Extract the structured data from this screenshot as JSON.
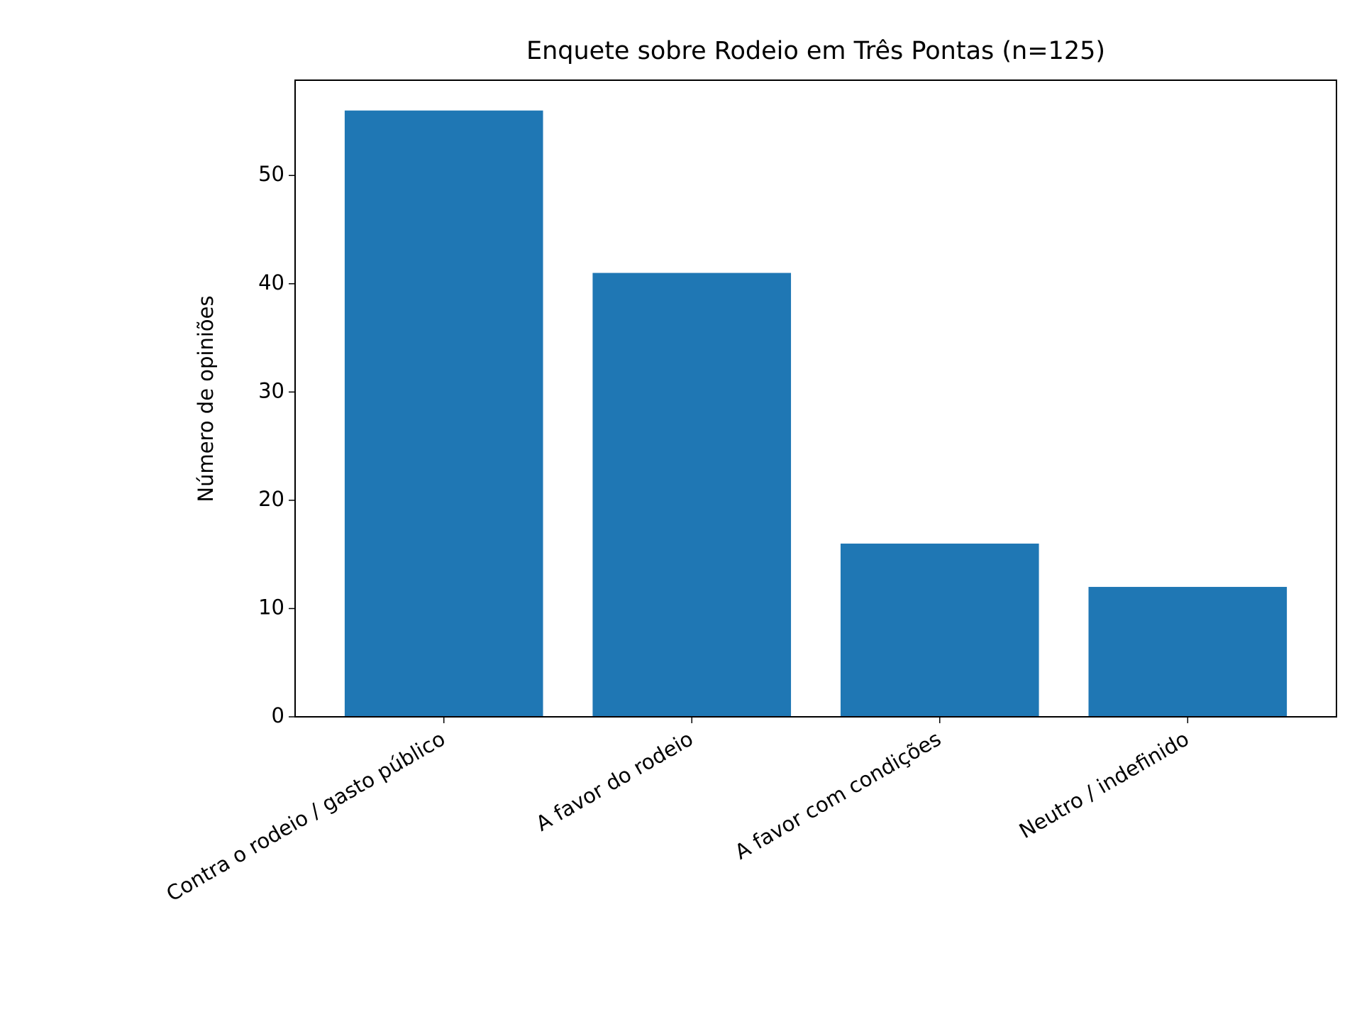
{
  "chart_data": {
    "type": "bar",
    "title": "Enquete sobre Rodeio em Três Pontas (n=125)",
    "y_label": "Número de opiniões",
    "categories": [
      "Contra o rodeio / gasto público",
      "A favor do rodeio",
      "A favor com condições",
      "Neutro / indefinido"
    ],
    "values": [
      56,
      41,
      16,
      12
    ],
    "color": "#1f77b4",
    "ylim": [
      0,
      58.8
    ],
    "yticks": [
      0,
      10,
      20,
      30,
      40,
      50
    ],
    "grid": false
  }
}
